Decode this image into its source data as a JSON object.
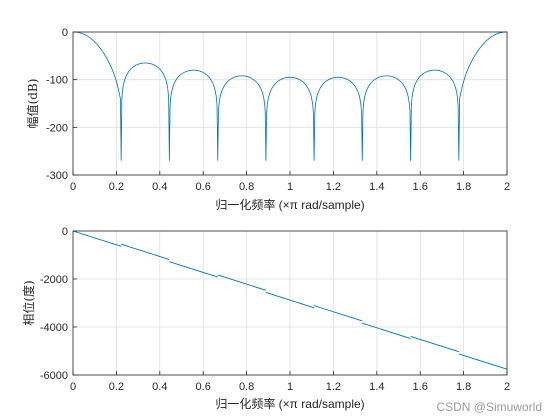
{
  "watermark": "CSDN @Simuworld",
  "chart_data": [
    {
      "type": "line",
      "xlabel": "归一化频率  (×π rad/sample)",
      "ylabel": "幅值(dB)",
      "xlim": [
        0,
        2
      ],
      "ylim": [
        -300,
        0
      ],
      "xticks": [
        0,
        0.2,
        0.4,
        0.6,
        0.8,
        1,
        1.2,
        1.4,
        1.6,
        1.8,
        2
      ],
      "xtick_labels": [
        "0",
        "0.2",
        "0.4",
        "0.6",
        "0.8",
        "1",
        "1.2",
        "1.4",
        "1.6",
        "1.8",
        "2"
      ],
      "yticks": [
        0,
        -100,
        -200,
        -300
      ],
      "ytick_labels": [
        "0",
        "-100",
        "-200",
        "-300"
      ],
      "grid": true,
      "color": "#0072BD",
      "nulls": [
        0.222,
        0.444,
        0.667,
        0.889,
        1.111,
        1.333,
        1.556,
        1.778
      ],
      "null_depth": -270,
      "lobe_peaks": [
        -65,
        -80,
        -92,
        -95,
        -95,
        -92,
        -80,
        -65
      ],
      "mainlobe_edge": 0.222
    },
    {
      "type": "line",
      "xlabel": "归一化频率  (×π rad/sample)",
      "ylabel": "相位(度)",
      "xlim": [
        0,
        2
      ],
      "ylim": [
        -6000,
        0
      ],
      "xticks": [
        0,
        0.2,
        0.4,
        0.6,
        0.8,
        1,
        1.2,
        1.4,
        1.6,
        1.8,
        2
      ],
      "xtick_labels": [
        "0",
        "0.2",
        "0.4",
        "0.6",
        "0.8",
        "1",
        "1.2",
        "1.4",
        "1.6",
        "1.8",
        "2"
      ],
      "yticks": [
        0,
        -2000,
        -4000,
        -6000
      ],
      "ytick_labels": [
        "0",
        "-2000",
        "-4000",
        "-6000"
      ],
      "grid": true,
      "color": "#0072BD",
      "x": [
        0,
        2
      ],
      "y": [
        0,
        -5760
      ],
      "jump_x": [
        0.222,
        0.444,
        0.667,
        0.889,
        1.111,
        1.333,
        1.556,
        1.778
      ],
      "jump_deg": 180
    }
  ]
}
